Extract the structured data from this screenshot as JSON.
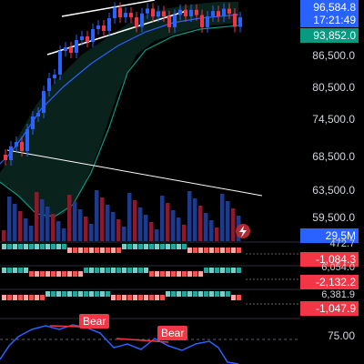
{
  "price_axis": {
    "labels": [
      "86,500.0",
      "80,500.0",
      "74,500.0",
      "68,500.0",
      "63,500.0",
      "59,500.0"
    ]
  },
  "last_price": {
    "value": "96,584.8",
    "countdown": "17:21:49",
    "color": "#2962ff"
  },
  "band_price": {
    "value": "93,852.0",
    "color": "#089981"
  },
  "volume": {
    "value": "29.5M",
    "color": "#2962ff"
  },
  "panes": [
    {
      "top_value": "472.7",
      "value": "-1,084.3"
    },
    {
      "top_value": "6,054.0",
      "value": "-2,132.2"
    },
    {
      "top_value": "6,381.9",
      "value": "-1,047.9"
    }
  ],
  "rsi": {
    "level": "75.00",
    "labels": [
      "Bear",
      "Bear"
    ]
  },
  "colors": {
    "up": "#26a69a",
    "down": "#ef5350",
    "up_bar": "#2962ff",
    "down_bar": "#f23645",
    "bear": "#f23645",
    "ma_blue": "#2962ff",
    "ma_green": "#089981"
  }
}
